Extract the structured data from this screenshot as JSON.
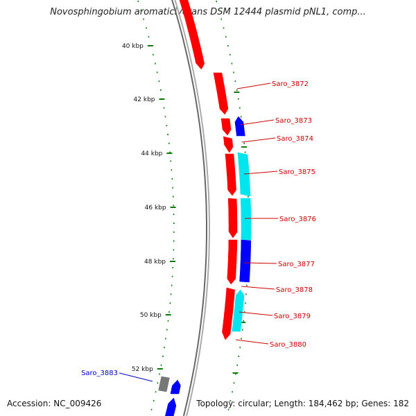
{
  "map": {
    "title": "Novosphingobium aromaticivorans DSM 12444 plasmid pNL1, comp...",
    "accession": "Accession: NC_009426",
    "summary": "Topology: circular; Length: 184,462 bp; Genes: 182",
    "scale_labels": [
      "40 kbp",
      "42 kbp",
      "44 kbp",
      "46 kbp",
      "48 kbp",
      "50 kbp",
      "52 kbp"
    ],
    "gene_labels": [
      {
        "text": "Saro_3872",
        "color": "#cc0000"
      },
      {
        "text": "Saro_3873",
        "color": "#cc0000"
      },
      {
        "text": "Saro_3874",
        "color": "#cc0000"
      },
      {
        "text": "Saro_3875",
        "color": "#cc0000"
      },
      {
        "text": "Saro_3876",
        "color": "#cc0000"
      },
      {
        "text": "Saro_3877",
        "color": "#cc0000"
      },
      {
        "text": "Saro_3878",
        "color": "#cc0000"
      },
      {
        "text": "Saro_3879",
        "color": "#cc0000"
      },
      {
        "text": "Saro_3880",
        "color": "#cc0000"
      },
      {
        "text": "Saro_3883",
        "color": "#0000cc"
      }
    ],
    "colors": {
      "cds_red": "#ff0000",
      "cds_blue": "#0000ff",
      "cds_cyan": "#00e5ee",
      "cds_gray": "#777777",
      "backbone": "#888888",
      "tick_green": "#0a7a0a"
    }
  }
}
